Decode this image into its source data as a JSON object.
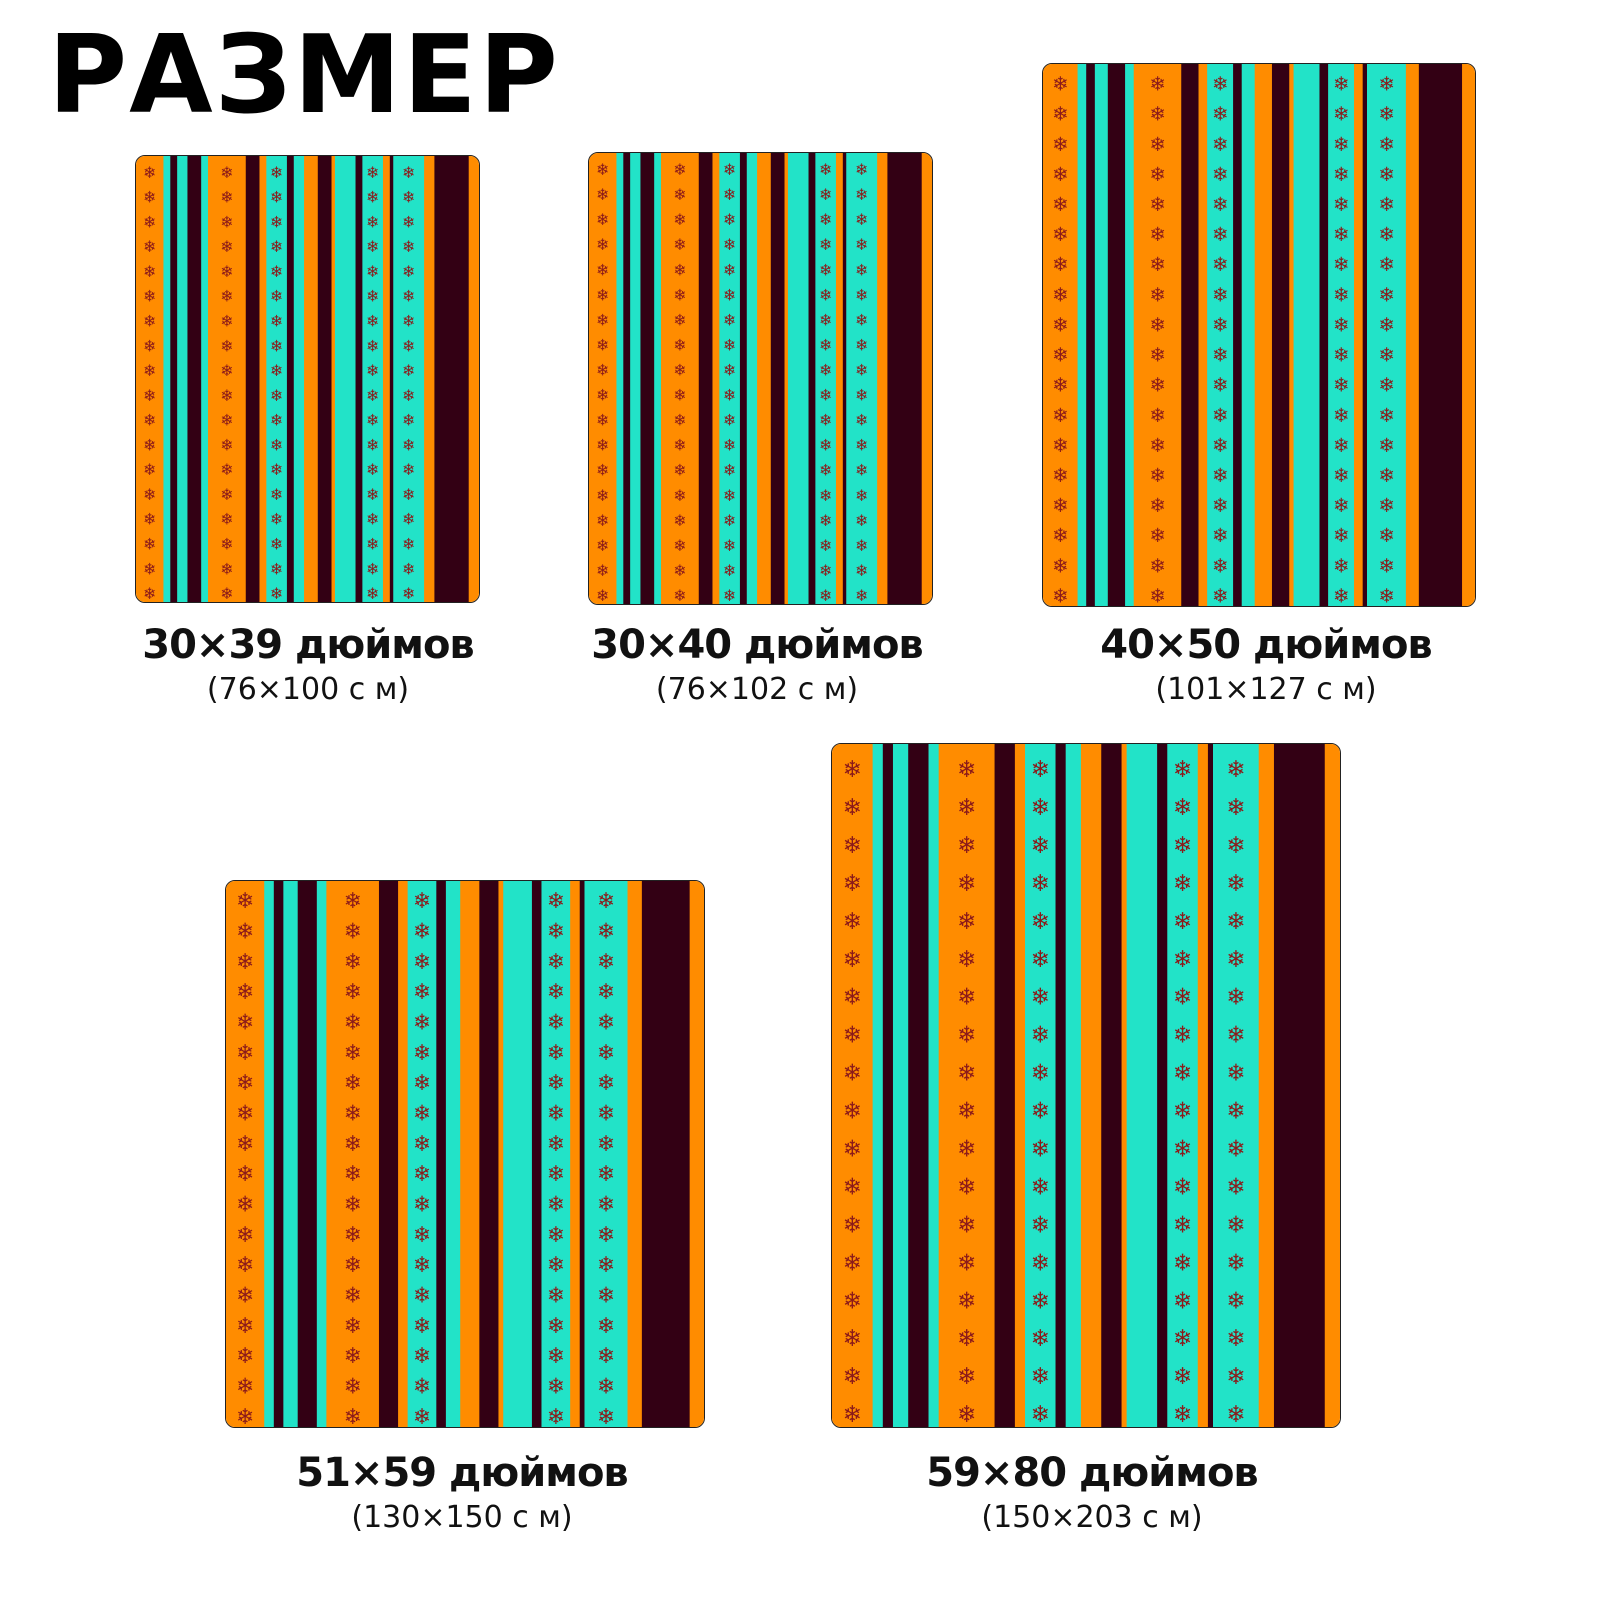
{
  "title": "РАЗМЕР",
  "colors": {
    "orange": "#ff8c00",
    "teal": "#22e3c8",
    "dark": "#330014",
    "flake": "#8b1a1a"
  },
  "sizes": [
    {
      "inches": "30×39 дюймов",
      "cm": "(76×100 с м)"
    },
    {
      "inches": "30×40 дюймов",
      "cm": "(76×102 с м)"
    },
    {
      "inches": "40×50 дюймов",
      "cm": "(101×127 с м)"
    },
    {
      "inches": "51×59 дюймов",
      "cm": "(130×150 с м)"
    },
    {
      "inches": "59×80 дюймов",
      "cm": "(150×203 с м)"
    }
  ]
}
